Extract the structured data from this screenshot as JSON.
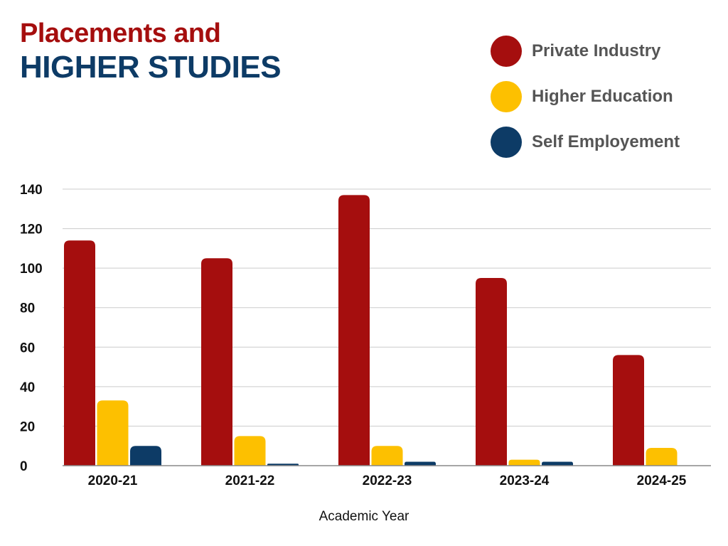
{
  "title_line1": "Placements and",
  "title_line2": "HIGHER STUDIES",
  "chart_data": {
    "type": "bar",
    "title": "Placements and HIGHER STUDIES",
    "xlabel": "Academic Year",
    "ylabel": "",
    "ylim": [
      0,
      140
    ],
    "yticks": [
      0,
      20,
      40,
      60,
      80,
      100,
      120,
      140
    ],
    "grid": true,
    "legend_position": "top-right",
    "categories": [
      "2020-21",
      "2021-22",
      "2022-23",
      "2023-24",
      "2024-25"
    ],
    "series": [
      {
        "name": "Private Industry",
        "color": "#a50e0e",
        "values": [
          114,
          105,
          137,
          95,
          56
        ]
      },
      {
        "name": "Higher Education",
        "color": "#fdc000",
        "values": [
          33,
          15,
          10,
          3,
          9
        ]
      },
      {
        "name": "Self Employement",
        "color": "#0d3b66",
        "values": [
          10,
          1,
          2,
          2,
          0
        ]
      }
    ]
  }
}
